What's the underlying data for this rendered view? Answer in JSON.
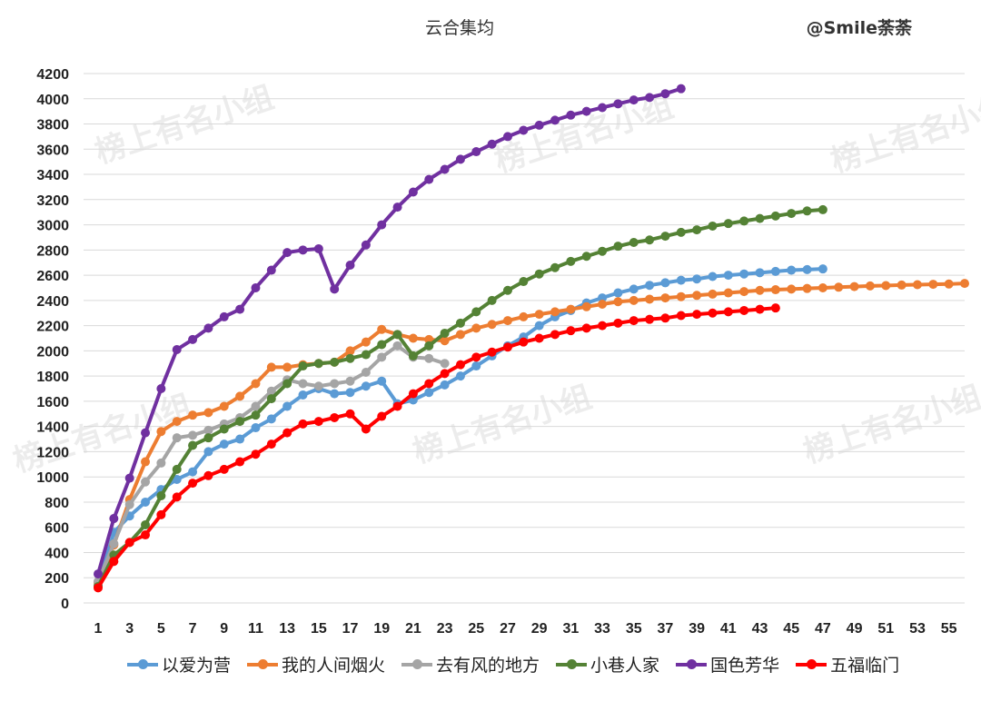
{
  "credit": "@Smile荼荼",
  "watermark": "榜上有名小组",
  "colors": {
    "grid": "#d9d9d9"
  },
  "chart_data": {
    "type": "line",
    "title": "云合集均",
    "xlabel": "",
    "ylabel": "",
    "ylim": [
      0,
      4200
    ],
    "yticks": [
      0,
      200,
      400,
      600,
      800,
      1000,
      1200,
      1400,
      1600,
      1800,
      2000,
      2200,
      2400,
      2600,
      2800,
      3000,
      3200,
      3400,
      3600,
      3800,
      4000,
      4200
    ],
    "xlim": [
      1,
      56
    ],
    "xticks": [
      1,
      3,
      5,
      7,
      9,
      11,
      13,
      15,
      17,
      19,
      21,
      23,
      25,
      27,
      29,
      31,
      33,
      35,
      37,
      39,
      41,
      43,
      45,
      47,
      49,
      51,
      53,
      55
    ],
    "grid": true,
    "legend_position": "bottom",
    "series": [
      {
        "name": "以爱为营",
        "color": "#5b9bd5",
        "values": [
          140,
          560,
          690,
          800,
          900,
          980,
          1040,
          1200,
          1260,
          1300,
          1390,
          1460,
          1560,
          1650,
          1700,
          1660,
          1670,
          1720,
          1760,
          1580,
          1610,
          1670,
          1730,
          1800,
          1880,
          1960,
          2040,
          2110,
          2200,
          2270,
          2320,
          2380,
          2420,
          2460,
          2490,
          2520,
          2540,
          2560,
          2570,
          2590,
          2600,
          2610,
          2620,
          2630,
          2640,
          2645,
          2650
        ]
      },
      {
        "name": "我的人间烟火",
        "color": "#ed7d31",
        "values": [
          160,
          460,
          820,
          1120,
          1360,
          1440,
          1490,
          1510,
          1560,
          1640,
          1740,
          1870,
          1870,
          1890,
          1900,
          1910,
          2000,
          2070,
          2170,
          2130,
          2100,
          2090,
          2080,
          2130,
          2180,
          2210,
          2240,
          2270,
          2290,
          2310,
          2330,
          2350,
          2370,
          2390,
          2400,
          2410,
          2420,
          2430,
          2440,
          2450,
          2460,
          2470,
          2480,
          2485,
          2490,
          2495,
          2500,
          2505,
          2510,
          2515,
          2518,
          2522,
          2525,
          2528,
          2530,
          2535
        ]
      },
      {
        "name": "去有风的地方",
        "color": "#a5a5a5",
        "values": [
          170,
          470,
          780,
          960,
          1110,
          1310,
          1330,
          1370,
          1420,
          1470,
          1560,
          1680,
          1770,
          1740,
          1720,
          1740,
          1760,
          1830,
          1950,
          2040,
          1950,
          1940,
          1900
        ]
      },
      {
        "name": "小巷人家",
        "color": "#548235",
        "values": [
          130,
          380,
          480,
          620,
          850,
          1060,
          1250,
          1310,
          1380,
          1440,
          1490,
          1620,
          1740,
          1880,
          1900,
          1910,
          1940,
          1970,
          2050,
          2130,
          1960,
          2040,
          2140,
          2220,
          2310,
          2400,
          2480,
          2550,
          2610,
          2660,
          2710,
          2750,
          2790,
          2830,
          2860,
          2880,
          2910,
          2940,
          2960,
          2990,
          3010,
          3030,
          3050,
          3070,
          3090,
          3110,
          3120
        ]
      },
      {
        "name": "国色芳华",
        "color": "#7030a0",
        "values": [
          230,
          670,
          990,
          1350,
          1700,
          2010,
          2090,
          2180,
          2270,
          2330,
          2500,
          2640,
          2780,
          2800,
          2810,
          2490,
          2680,
          2840,
          3000,
          3140,
          3260,
          3360,
          3440,
          3520,
          3580,
          3640,
          3700,
          3750,
          3790,
          3830,
          3870,
          3900,
          3930,
          3960,
          3990,
          4010,
          4040,
          4080
        ]
      },
      {
        "name": "五福临门",
        "color": "#ff0000",
        "values": [
          120,
          330,
          480,
          540,
          700,
          840,
          950,
          1010,
          1060,
          1120,
          1180,
          1260,
          1350,
          1420,
          1440,
          1470,
          1500,
          1380,
          1480,
          1560,
          1660,
          1740,
          1820,
          1890,
          1950,
          1990,
          2030,
          2070,
          2100,
          2130,
          2160,
          2180,
          2200,
          2220,
          2240,
          2250,
          2260,
          2280,
          2290,
          2300,
          2310,
          2320,
          2330,
          2340
        ]
      }
    ]
  }
}
